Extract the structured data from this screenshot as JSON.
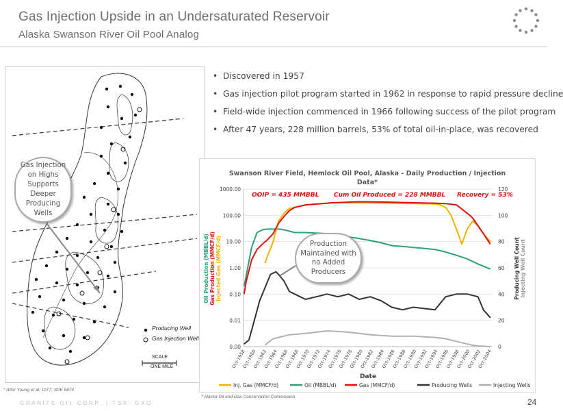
{
  "header": {
    "title": "Gas Injection Upside in an Undersaturated Reservoir",
    "subtitle": "Alaska Swanson River Oil Pool Analog"
  },
  "bullets": [
    "Discovered in 1957",
    "Gas injection pilot program started in 1962 in response to rapid pressure decline",
    "Field-wide injection commenced in 1966 following success of the pilot program",
    "After 47 years, 228 million barrels, 53% of total oil-in-place, was recovered"
  ],
  "map": {
    "legend": {
      "producing": "Producing Well",
      "injection": "Gas Injection Well"
    },
    "scale": {
      "label": "SCALE",
      "unit": "ONE MILE"
    },
    "callout": "Gas Injection on Highs Supports Deeper Producing Wells",
    "source": "* After Young et al. 1977; SPE 5874"
  },
  "callout2": "Production Maintained with no Added Producers",
  "chart_data": {
    "type": "line",
    "title": "Swanson River Field, Hemlock Oil Pool, Alaska - Daily Production / Injection Data*",
    "annotations": [
      "OOIP = 435 MMBBL",
      "Cum Oil Produced = 228 MMBBL",
      "Recovery = 53%"
    ],
    "xlabel": "Date",
    "ylabel_left": [
      "Oil Production (MBBL/d)",
      "Gas Production (MMCF/d)",
      "Injected Gas (MMCF/d)"
    ],
    "ylabel_right": [
      "Producing Well Count",
      "Injecting Well Count"
    ],
    "y_left_scale": "log",
    "y_left_ticks": [
      "1000.00",
      "100.00",
      "10.00",
      "1.00",
      "0.10",
      "0.01",
      "0.00"
    ],
    "y_right_ticks": [
      "120",
      "100",
      "80",
      "60",
      "40",
      "20",
      "0"
    ],
    "y_right_range": [
      0,
      120
    ],
    "x_ticks": [
      "Oct-1958",
      "Oct-1960",
      "Oct-1962",
      "Oct-1964",
      "Oct-1966",
      "Oct-1968",
      "Oct-1970",
      "Oct-1972",
      "Oct-1974",
      "Oct-1976",
      "Oct-1978",
      "Oct-1980",
      "Oct-1982",
      "Oct-1984",
      "Oct-1986",
      "Oct-1988",
      "Oct-1990",
      "Oct-1992",
      "Oct-1994",
      "Oct-1996",
      "Oct-1998",
      "Oct-2000",
      "Oct-2002",
      "Oct-2004"
    ],
    "grid": true,
    "legend_position": "bottom",
    "series": [
      {
        "name": "Inj. Gas (MMCF/d)",
        "color": "#f0b400",
        "axis": "left",
        "x": [
          1962.5,
          1963,
          1964,
          1965,
          1966,
          1967,
          1970,
          1975,
          1980,
          1985,
          1990,
          1994,
          1995,
          1996,
          1997,
          1998,
          1999,
          2000,
          2001,
          2002,
          2003,
          2004.3
        ],
        "y": [
          1.5,
          3,
          10,
          60,
          120,
          180,
          250,
          300,
          300,
          290,
          280,
          270,
          250,
          200,
          100,
          30,
          8,
          30,
          60,
          40,
          20,
          10
        ]
      },
      {
        "name": "Oil (MBBL/d)",
        "color": "#2aa07e",
        "axis": "left",
        "x": [
          1958.6,
          1959,
          1960,
          1961,
          1962,
          1963,
          1964,
          1965,
          1966,
          1967,
          1968,
          1970,
          1972,
          1974,
          1976,
          1978,
          1980,
          1982,
          1984,
          1986,
          1988,
          1990,
          1992,
          1994,
          1996,
          1998,
          2000,
          2002,
          2004.3
        ],
        "y": [
          0.2,
          0.5,
          6,
          22,
          28,
          30,
          30,
          30,
          28,
          25,
          22,
          22,
          21,
          20,
          18,
          15,
          13,
          11,
          9,
          7,
          6.5,
          6,
          5.5,
          5,
          4,
          3,
          2.2,
          1.4,
          0.9
        ]
      },
      {
        "name": "Gas (MMCF/d)",
        "color": "#e01010",
        "axis": "left",
        "x": [
          1958.6,
          1959,
          1960,
          1961,
          1962,
          1963,
          1964,
          1965,
          1966,
          1967,
          1968,
          1970,
          1975,
          1980,
          1985,
          1990,
          1994,
          1996,
          1998,
          2000,
          2001,
          2002,
          2003,
          2004.3
        ],
        "y": [
          0.1,
          0.3,
          2,
          5,
          8,
          12,
          20,
          50,
          90,
          150,
          200,
          250,
          300,
          330,
          320,
          300,
          290,
          280,
          250,
          120,
          80,
          40,
          20,
          8
        ]
      },
      {
        "name": "Producing Wells",
        "color": "#333333",
        "axis": "right",
        "x": [
          1958.6,
          1959.5,
          1960.5,
          1961.5,
          1962.5,
          1963.5,
          1964.5,
          1965,
          1966,
          1967,
          1968,
          1969,
          1970,
          1972,
          1974,
          1976,
          1978,
          1980,
          1982,
          1984,
          1986,
          1988,
          1990,
          1992,
          1994,
          1995,
          1996,
          1998,
          2000,
          2002,
          2003,
          2004.3
        ],
        "y": [
          2,
          5,
          20,
          35,
          45,
          55,
          57,
          55,
          50,
          42,
          40,
          38,
          36,
          38,
          40,
          38,
          40,
          36,
          38,
          35,
          30,
          28,
          30,
          29,
          28,
          33,
          38,
          40,
          40,
          38,
          28,
          22
        ]
      },
      {
        "name": "Injecting Wells",
        "color": "#b0b0b0",
        "axis": "right",
        "x": [
          1962.5,
          1963,
          1964,
          1965,
          1966,
          1967,
          1970,
          1974,
          1978,
          1980,
          1982,
          1986,
          1990,
          1994,
          1996,
          1998,
          2000,
          2001,
          2002,
          2004.3
        ],
        "y": [
          1,
          3,
          6,
          7,
          8,
          9,
          10,
          12,
          11,
          10,
          9,
          8,
          8,
          7,
          6,
          4,
          2,
          1,
          0.5,
          0
        ]
      }
    ]
  },
  "chart_source": "* Alaska Oil and Gas Conservation Commission",
  "footer": "GRANITE OIL CORP. | TSX: GXO",
  "page_number": "24"
}
